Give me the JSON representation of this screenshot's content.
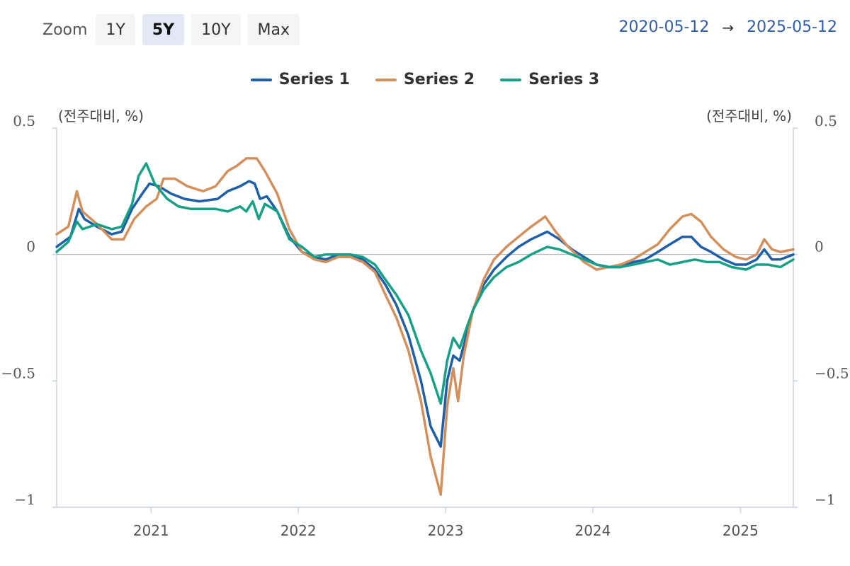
{
  "zoom": {
    "label": "Zoom",
    "buttons": [
      "1Y",
      "5Y",
      "10Y",
      "Max"
    ],
    "selected": "5Y"
  },
  "date_range": {
    "from": "2020-05-12",
    "arrow": "→",
    "to": "2025-05-12"
  },
  "unit_left": "(전주대비, %)",
  "unit_right": "(전주대비, %)",
  "chart_data": {
    "type": "line",
    "ylim": [
      -1,
      0.5
    ],
    "y_ticks": [
      0.5,
      0,
      -0.5,
      -1
    ],
    "y_tick_labels": [
      "0.5",
      "0",
      "−0.5",
      "−1"
    ],
    "xlim": [
      "2020-05-12",
      "2025-05-12"
    ],
    "x_tick_labels": [
      "2021",
      "2022",
      "2023",
      "2024",
      "2025"
    ],
    "x_tick_dates": [
      "2021-01-01",
      "2022-01-01",
      "2023-01-01",
      "2024-01-01",
      "2025-01-01"
    ],
    "legend_position": "top-center",
    "series": [
      {
        "name": "Series 1",
        "color": "#1f5fa8",
        "points": [
          [
            "2020-05-12",
            0.03
          ],
          [
            "2020-06-15",
            0.07
          ],
          [
            "2020-07-06",
            0.18
          ],
          [
            "2020-07-20",
            0.14
          ],
          [
            "2020-08-20",
            0.11
          ],
          [
            "2020-09-25",
            0.08
          ],
          [
            "2020-10-20",
            0.09
          ],
          [
            "2020-11-15",
            0.18
          ],
          [
            "2020-12-10",
            0.24
          ],
          [
            "2020-12-28",
            0.28
          ],
          [
            "2021-01-20",
            0.27
          ],
          [
            "2021-02-20",
            0.24
          ],
          [
            "2021-03-25",
            0.22
          ],
          [
            "2021-05-01",
            0.21
          ],
          [
            "2021-06-15",
            0.22
          ],
          [
            "2021-07-10",
            0.25
          ],
          [
            "2021-08-10",
            0.27
          ],
          [
            "2021-09-01",
            0.29
          ],
          [
            "2021-09-15",
            0.28
          ],
          [
            "2021-09-28",
            0.22
          ],
          [
            "2021-10-15",
            0.23
          ],
          [
            "2021-11-10",
            0.17
          ],
          [
            "2021-12-10",
            0.07
          ],
          [
            "2022-01-10",
            0.01
          ],
          [
            "2022-02-10",
            -0.01
          ],
          [
            "2022-03-10",
            -0.02
          ],
          [
            "2022-04-10",
            0.0
          ],
          [
            "2022-05-10",
            0.0
          ],
          [
            "2022-06-10",
            -0.02
          ],
          [
            "2022-07-10",
            -0.06
          ],
          [
            "2022-08-05",
            -0.12
          ],
          [
            "2022-09-01",
            -0.2
          ],
          [
            "2022-10-01",
            -0.32
          ],
          [
            "2022-11-01",
            -0.5
          ],
          [
            "2022-11-25",
            -0.68
          ],
          [
            "2022-12-20",
            -0.76
          ],
          [
            "2023-01-05",
            -0.5
          ],
          [
            "2023-01-20",
            -0.4
          ],
          [
            "2023-02-05",
            -0.42
          ],
          [
            "2023-02-20",
            -0.33
          ],
          [
            "2023-03-10",
            -0.22
          ],
          [
            "2023-04-05",
            -0.12
          ],
          [
            "2023-05-01",
            -0.06
          ],
          [
            "2023-06-01",
            -0.01
          ],
          [
            "2023-07-01",
            0.03
          ],
          [
            "2023-08-01",
            0.06
          ],
          [
            "2023-09-10",
            0.09
          ],
          [
            "2023-10-10",
            0.06
          ],
          [
            "2023-11-10",
            0.02
          ],
          [
            "2023-12-10",
            -0.01
          ],
          [
            "2024-01-10",
            -0.04
          ],
          [
            "2024-02-10",
            -0.05
          ],
          [
            "2024-03-10",
            -0.05
          ],
          [
            "2024-04-10",
            -0.03
          ],
          [
            "2024-05-10",
            -0.02
          ],
          [
            "2024-06-10",
            0.01
          ],
          [
            "2024-07-10",
            0.04
          ],
          [
            "2024-08-10",
            0.07
          ],
          [
            "2024-09-01",
            0.07
          ],
          [
            "2024-09-25",
            0.03
          ],
          [
            "2024-10-20",
            0.01
          ],
          [
            "2024-11-20",
            -0.02
          ],
          [
            "2024-12-20",
            -0.04
          ],
          [
            "2025-01-15",
            -0.04
          ],
          [
            "2025-02-10",
            -0.02
          ],
          [
            "2025-03-01",
            0.02
          ],
          [
            "2025-03-20",
            -0.02
          ],
          [
            "2025-04-10",
            -0.02
          ],
          [
            "2025-05-12",
            0.0
          ]
        ]
      },
      {
        "name": "Series 2",
        "color": "#d4905c",
        "points": [
          [
            "2020-05-12",
            0.08
          ],
          [
            "2020-06-10",
            0.11
          ],
          [
            "2020-07-01",
            0.25
          ],
          [
            "2020-07-15",
            0.17
          ],
          [
            "2020-08-20",
            0.12
          ],
          [
            "2020-09-25",
            0.06
          ],
          [
            "2020-10-25",
            0.06
          ],
          [
            "2020-11-20",
            0.14
          ],
          [
            "2020-12-20",
            0.19
          ],
          [
            "2021-01-15",
            0.22
          ],
          [
            "2021-02-01",
            0.3
          ],
          [
            "2021-03-01",
            0.3
          ],
          [
            "2021-04-01",
            0.27
          ],
          [
            "2021-05-10",
            0.25
          ],
          [
            "2021-06-10",
            0.27
          ],
          [
            "2021-07-10",
            0.33
          ],
          [
            "2021-08-01",
            0.35
          ],
          [
            "2021-08-25",
            0.38
          ],
          [
            "2021-09-20",
            0.38
          ],
          [
            "2021-10-10",
            0.33
          ],
          [
            "2021-11-10",
            0.24
          ],
          [
            "2021-12-10",
            0.1
          ],
          [
            "2022-01-10",
            0.01
          ],
          [
            "2022-02-10",
            -0.02
          ],
          [
            "2022-03-10",
            -0.03
          ],
          [
            "2022-04-10",
            -0.01
          ],
          [
            "2022-05-10",
            -0.01
          ],
          [
            "2022-06-10",
            -0.03
          ],
          [
            "2022-07-10",
            -0.07
          ],
          [
            "2022-08-05",
            -0.16
          ],
          [
            "2022-09-01",
            -0.25
          ],
          [
            "2022-10-01",
            -0.38
          ],
          [
            "2022-11-01",
            -0.58
          ],
          [
            "2022-11-25",
            -0.8
          ],
          [
            "2022-12-20",
            -0.95
          ],
          [
            "2023-01-05",
            -0.6
          ],
          [
            "2023-01-20",
            -0.45
          ],
          [
            "2023-02-01",
            -0.58
          ],
          [
            "2023-02-15",
            -0.4
          ],
          [
            "2023-03-10",
            -0.22
          ],
          [
            "2023-04-05",
            -0.1
          ],
          [
            "2023-05-01",
            -0.02
          ],
          [
            "2023-06-01",
            0.03
          ],
          [
            "2023-07-01",
            0.07
          ],
          [
            "2023-08-01",
            0.11
          ],
          [
            "2023-09-05",
            0.15
          ],
          [
            "2023-10-01",
            0.09
          ],
          [
            "2023-11-01",
            0.03
          ],
          [
            "2023-12-10",
            -0.03
          ],
          [
            "2024-01-10",
            -0.06
          ],
          [
            "2024-02-10",
            -0.05
          ],
          [
            "2024-03-10",
            -0.04
          ],
          [
            "2024-04-10",
            -0.02
          ],
          [
            "2024-05-10",
            0.01
          ],
          [
            "2024-06-10",
            0.04
          ],
          [
            "2024-07-10",
            0.1
          ],
          [
            "2024-08-10",
            0.15
          ],
          [
            "2024-09-01",
            0.16
          ],
          [
            "2024-09-25",
            0.13
          ],
          [
            "2024-10-20",
            0.07
          ],
          [
            "2024-11-20",
            0.02
          ],
          [
            "2024-12-20",
            -0.01
          ],
          [
            "2025-01-15",
            -0.02
          ],
          [
            "2025-02-10",
            0.0
          ],
          [
            "2025-03-01",
            0.06
          ],
          [
            "2025-03-20",
            0.02
          ],
          [
            "2025-04-10",
            0.01
          ],
          [
            "2025-05-12",
            0.02
          ]
        ]
      },
      {
        "name": "Series 3",
        "color": "#16a085",
        "points": [
          [
            "2020-05-12",
            0.01
          ],
          [
            "2020-06-10",
            0.05
          ],
          [
            "2020-07-01",
            0.13
          ],
          [
            "2020-07-15",
            0.1
          ],
          [
            "2020-08-20",
            0.12
          ],
          [
            "2020-09-25",
            0.1
          ],
          [
            "2020-10-20",
            0.11
          ],
          [
            "2020-11-15",
            0.2
          ],
          [
            "2020-12-01",
            0.31
          ],
          [
            "2020-12-20",
            0.36
          ],
          [
            "2021-01-10",
            0.28
          ],
          [
            "2021-02-10",
            0.22
          ],
          [
            "2021-03-10",
            0.19
          ],
          [
            "2021-04-10",
            0.18
          ],
          [
            "2021-05-10",
            0.18
          ],
          [
            "2021-06-10",
            0.18
          ],
          [
            "2021-07-10",
            0.17
          ],
          [
            "2021-08-10",
            0.19
          ],
          [
            "2021-08-25",
            0.17
          ],
          [
            "2021-09-10",
            0.21
          ],
          [
            "2021-09-25",
            0.14
          ],
          [
            "2021-10-10",
            0.2
          ],
          [
            "2021-11-10",
            0.17
          ],
          [
            "2021-12-10",
            0.06
          ],
          [
            "2022-01-10",
            0.03
          ],
          [
            "2022-02-10",
            -0.01
          ],
          [
            "2022-03-10",
            0.0
          ],
          [
            "2022-04-10",
            0.0
          ],
          [
            "2022-05-10",
            0.0
          ],
          [
            "2022-06-10",
            -0.01
          ],
          [
            "2022-07-10",
            -0.04
          ],
          [
            "2022-08-05",
            -0.1
          ],
          [
            "2022-09-01",
            -0.16
          ],
          [
            "2022-10-01",
            -0.24
          ],
          [
            "2022-11-01",
            -0.38
          ],
          [
            "2022-11-25",
            -0.47
          ],
          [
            "2022-12-20",
            -0.59
          ],
          [
            "2023-01-05",
            -0.42
          ],
          [
            "2023-01-20",
            -0.33
          ],
          [
            "2023-02-05",
            -0.37
          ],
          [
            "2023-02-20",
            -0.3
          ],
          [
            "2023-03-10",
            -0.22
          ],
          [
            "2023-04-05",
            -0.14
          ],
          [
            "2023-05-01",
            -0.09
          ],
          [
            "2023-06-01",
            -0.05
          ],
          [
            "2023-07-01",
            -0.03
          ],
          [
            "2023-08-01",
            0.0
          ],
          [
            "2023-09-10",
            0.03
          ],
          [
            "2023-10-10",
            0.02
          ],
          [
            "2023-11-10",
            0.0
          ],
          [
            "2023-12-10",
            -0.02
          ],
          [
            "2024-01-10",
            -0.04
          ],
          [
            "2024-02-10",
            -0.05
          ],
          [
            "2024-03-10",
            -0.05
          ],
          [
            "2024-04-10",
            -0.04
          ],
          [
            "2024-05-10",
            -0.03
          ],
          [
            "2024-06-10",
            -0.02
          ],
          [
            "2024-07-10",
            -0.04
          ],
          [
            "2024-08-10",
            -0.03
          ],
          [
            "2024-09-10",
            -0.02
          ],
          [
            "2024-10-10",
            -0.03
          ],
          [
            "2024-11-10",
            -0.03
          ],
          [
            "2024-12-10",
            -0.05
          ],
          [
            "2025-01-15",
            -0.06
          ],
          [
            "2025-02-10",
            -0.04
          ],
          [
            "2025-03-10",
            -0.04
          ],
          [
            "2025-04-10",
            -0.05
          ],
          [
            "2025-05-12",
            -0.02
          ]
        ]
      }
    ]
  }
}
